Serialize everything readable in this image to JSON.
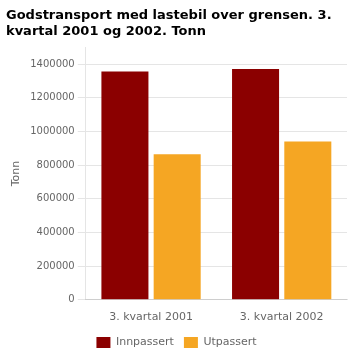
{
  "chart_data": {
    "type": "bar",
    "title": "Godstransport med lastebil over grensen. 3. kvartal 2001 og 2002. Tonn",
    "y_label": "Tonn",
    "categories": [
      "3. kvartal 2001",
      "3. kvartal 2002"
    ],
    "series": [
      {
        "name": "Innpassert",
        "color": "#8B0000",
        "values": [
          1355000,
          1370000
        ]
      },
      {
        "name": "Utpassert",
        "color": "#F5A623",
        "values": [
          865000,
          940000
        ]
      }
    ],
    "ylim": [
      0,
      1500000
    ],
    "yticks": [
      0,
      200000,
      400000,
      600000,
      800000,
      1000000,
      1200000,
      1400000
    ],
    "grid": true,
    "legend": "bottom"
  }
}
